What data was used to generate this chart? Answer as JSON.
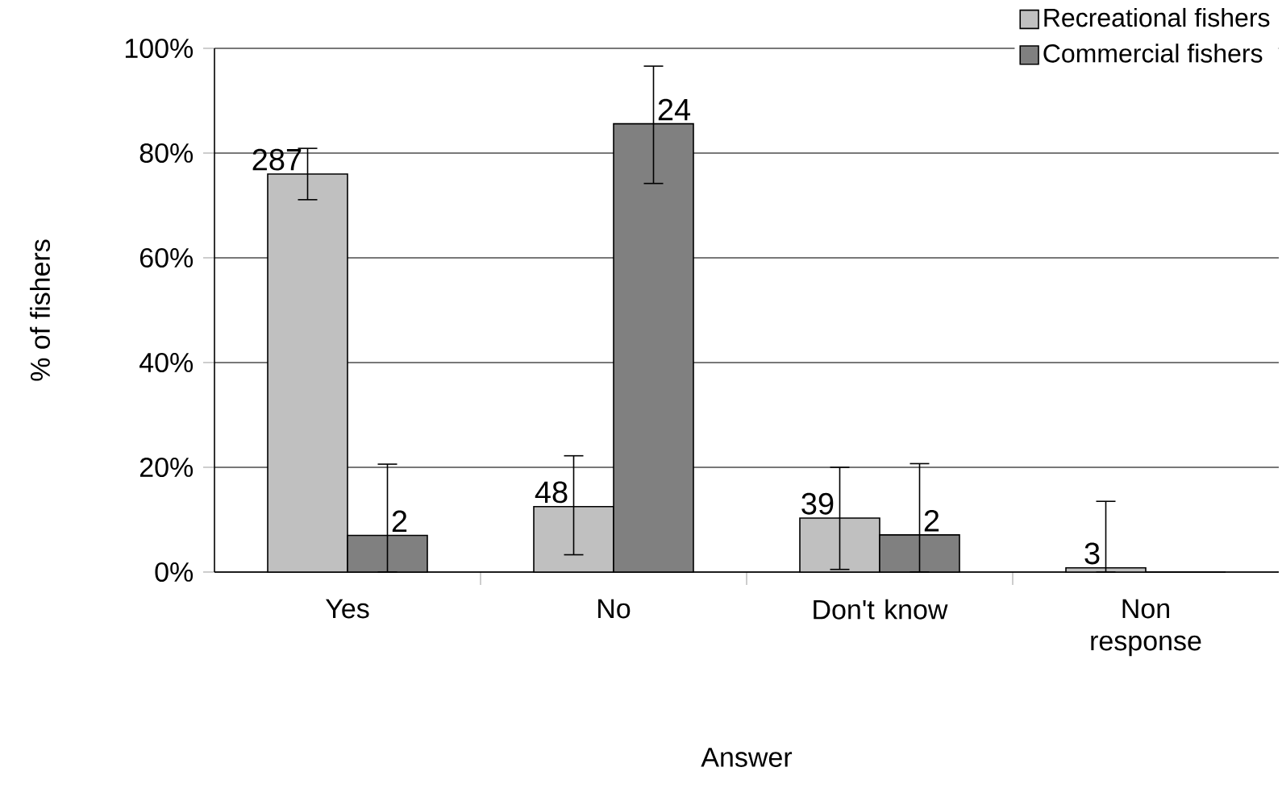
{
  "chart_data": {
    "type": "bar",
    "xlabel": "Answer",
    "ylabel": "% of fishers",
    "categories": [
      "Yes",
      "No",
      "Don't know",
      "Non response"
    ],
    "series": [
      {
        "name": "Recreational fishers",
        "color": "#c0c0c0",
        "values": [
          76.0,
          12.5,
          10.3,
          0.8
        ],
        "errors": [
          [
            71.1,
            80.9
          ],
          [
            3.3,
            22.2
          ],
          [
            0.5,
            20.0
          ],
          [
            0,
            13.5
          ]
        ]
      },
      {
        "name": "Commercial fishers",
        "color": "#808080",
        "values": [
          7.0,
          85.6,
          7.1,
          0
        ],
        "errors": [
          [
            0,
            20.6
          ],
          [
            74.2,
            96.6
          ],
          [
            0,
            20.7
          ],
          null
        ]
      }
    ],
    "annotations": [
      {
        "text": "287",
        "x": "Yes",
        "y": 76.0
      },
      {
        "text": "48",
        "x": "No",
        "y": 12.5
      },
      {
        "text": "39",
        "x": "Don't know",
        "y": 10.3
      },
      {
        "text": "3",
        "x": "Non response",
        "y": 0.8
      },
      {
        "text": "2",
        "x": "Yes",
        "y": 7.0
      },
      {
        "text": "24",
        "x": "No",
        "y": 85.6
      },
      {
        "text": "2",
        "x": "Don't know",
        "y": 7.1
      }
    ],
    "ylim": [
      0,
      100
    ],
    "yticks": [
      {
        "value": 0,
        "label": "0%"
      },
      {
        "value": 20,
        "label": "20%"
      },
      {
        "value": 40,
        "label": "40%"
      },
      {
        "value": 60,
        "label": "60%"
      },
      {
        "value": 80,
        "label": "80%"
      },
      {
        "value": 100,
        "label": "100%"
      }
    ],
    "grid": "y",
    "legend": "top right"
  }
}
